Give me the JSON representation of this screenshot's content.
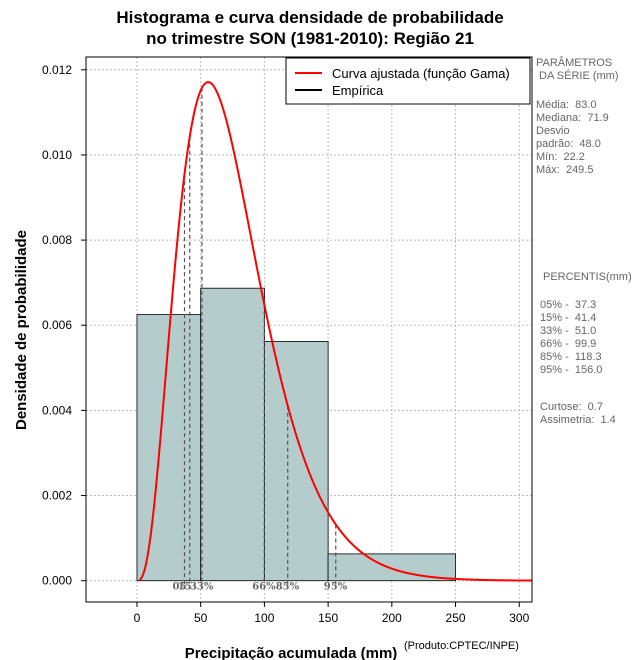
{
  "chart_data": {
    "type": "histogram",
    "title_line1": "Histograma e curva densidade de probabilidade",
    "title_line2": "no trimestre SON (1981-2010): Região 21",
    "xlabel": "Precipitação acumulada (mm)",
    "ylabel": "Densidade de probabilidade",
    "xlim": [
      -40,
      310
    ],
    "ylim": [
      -0.0005,
      0.0123
    ],
    "x_ticks": [
      0,
      50,
      100,
      150,
      200,
      250,
      300
    ],
    "y_ticks": [
      0.0,
      0.002,
      0.004,
      0.006,
      0.008,
      0.01,
      0.012
    ],
    "y_tick_labels": [
      "0.000",
      "0.002",
      "0.004",
      "0.006",
      "0.008",
      "0.010",
      "0.012"
    ],
    "bins": [
      {
        "from": 0,
        "to": 50,
        "density": 0.00625
      },
      {
        "from": 50,
        "to": 100,
        "density": 0.00687
      },
      {
        "from": 100,
        "to": 150,
        "density": 0.00562
      },
      {
        "from": 150,
        "to": 250,
        "density": 0.00063
      }
    ],
    "gamma_fit": {
      "shape": 3.85,
      "scale": 19.6
    },
    "legend": [
      {
        "label": "Curva ajustada (função Gama)",
        "color": "#ff0000"
      },
      {
        "label": "Empírica",
        "color": "#000000"
      }
    ],
    "percentile_lines": [
      {
        "label": "05%",
        "value": 37.3
      },
      {
        "label": "15%",
        "value": 41.4
      },
      {
        "label": "33%",
        "value": 51.0
      },
      {
        "label": "66%",
        "value": 99.9
      },
      {
        "label": "85%",
        "value": 118.3
      },
      {
        "label": "95%",
        "value": 156.0
      }
    ],
    "percentile_marker_labels": [
      "05",
      "15",
      "33%",
      "66%",
      "85%",
      "95%"
    ],
    "colors": {
      "bars": "#b5cccc",
      "curve": "#ff0000",
      "grid": "#bbbbbb",
      "percentile": "#555555"
    }
  },
  "sidebar": {
    "params_title": "PARÂMETROS\n DA SÉRIE (mm)",
    "stats": "Média:  83.0\nMediana:  71.9\nDesvio\npadrão:  48.0\nMín:  22.2\nMáx:  249.5",
    "percentis_title": "PERCENTIS(mm)",
    "percentis": "05% -  37.3\n15% -  41.4\n33% -  51.0\n66% -  99.9\n85% -  118.3\n95% -  156.0",
    "moments": "Curtose:  0.7\nAssimetria:  1.4"
  },
  "footer": {
    "credit": "(Produto:CPTEC/INPE)"
  }
}
